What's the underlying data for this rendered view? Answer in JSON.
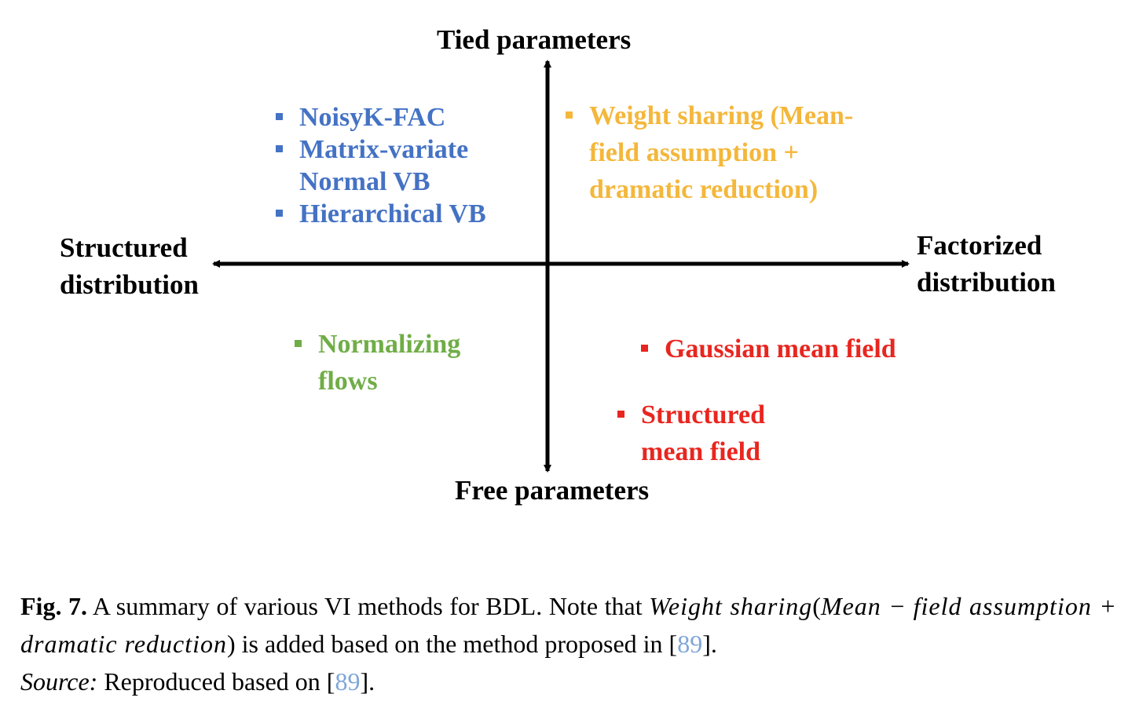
{
  "axes": {
    "top": "Tied parameters",
    "bottom": "Free parameters",
    "left": [
      "Structured",
      "distribution"
    ],
    "right": [
      "Factorized",
      "distribution"
    ]
  },
  "quadrants": {
    "top_left": {
      "color": "#4472c4",
      "items": [
        [
          "NoisyK-FAC"
        ],
        [
          "Matrix-variate",
          "Normal VB"
        ],
        [
          "Hierarchical VB"
        ]
      ]
    },
    "top_right": {
      "color": "#f4b73b",
      "items": [
        [
          "Weight sharing (Mean-",
          "field assumption +",
          "dramatic reduction)"
        ]
      ]
    },
    "bottom_left": {
      "color": "#70ad47",
      "items": [
        [
          "Normalizing",
          "flows"
        ]
      ]
    },
    "bottom_right": {
      "color": "#e8261f",
      "items": [
        [
          "Gaussian mean field"
        ],
        [
          "Structured",
          "mean field"
        ]
      ]
    }
  },
  "caption": {
    "figno": "Fig. 7.",
    "text1": "A summary of various VI methods for BDL. Note that",
    "math1": "Weight sharing",
    "paren_open": "(",
    "math2": "Mean −",
    "math3": "field assumption + dramatic reduction",
    "paren_close": ")",
    "text2": "is added based on the method proposed in [",
    "ref1": "89",
    "text3": "].",
    "source_label": "Source:",
    "text4": "Reproduced based on [",
    "ref2": "89",
    "text5": "]."
  }
}
